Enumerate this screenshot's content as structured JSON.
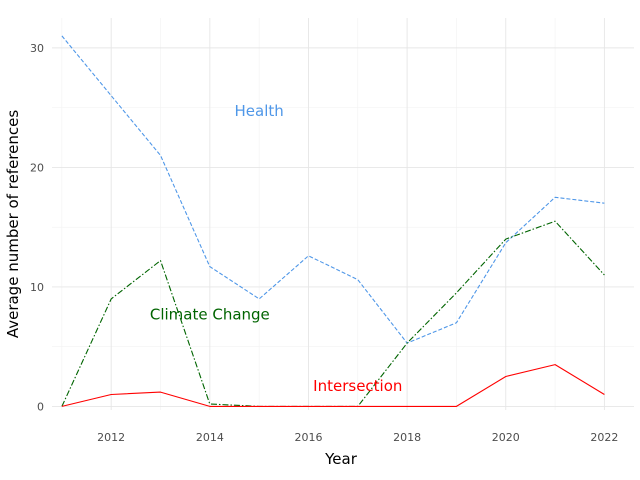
{
  "chart_data": {
    "type": "line",
    "title": "",
    "xlabel": "Year",
    "ylabel": "Average number of references",
    "xlim": [
      2010.8,
      2022.6
    ],
    "ylim": [
      -0.3,
      32.5
    ],
    "xticks": [
      2012,
      2014,
      2016,
      2018,
      2020,
      2022
    ],
    "yticks": [
      0,
      10,
      20,
      30
    ],
    "grid": true,
    "legend": "none",
    "x": [
      2011,
      2012,
      2013,
      2014,
      2015,
      2016,
      2017,
      2018,
      2019,
      2020,
      2021,
      2022
    ],
    "series": [
      {
        "name": "Health",
        "color": "#4f97e8",
        "line_style": "dashed",
        "values": [
          31.0,
          26.0,
          21.0,
          11.7,
          9.0,
          12.6,
          10.6,
          5.3,
          7.0,
          13.7,
          17.5,
          17.0
        ],
        "label_at": [
          2015,
          24.7
        ]
      },
      {
        "name": "Climate Change",
        "color": "#006400",
        "line_style": "dashdot",
        "values": [
          0.0,
          9.0,
          12.2,
          0.2,
          0.0,
          0.0,
          0.0,
          5.3,
          9.5,
          14.0,
          15.5,
          11.0
        ],
        "label_at": [
          2014,
          7.7
        ]
      },
      {
        "name": "Intersection",
        "color": "#ff0000",
        "line_style": "solid",
        "values": [
          0.0,
          1.0,
          1.2,
          0.0,
          0.0,
          0.0,
          0.0,
          0.0,
          0.0,
          2.5,
          3.5,
          1.0
        ],
        "label_at": [
          2017,
          1.7
        ]
      }
    ]
  }
}
